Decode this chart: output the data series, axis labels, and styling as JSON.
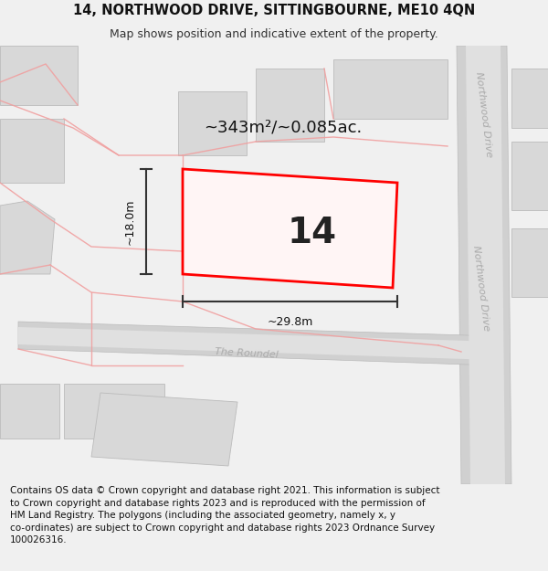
{
  "title_line1": "14, NORTHWOOD DRIVE, SITTINGBOURNE, ME10 4QN",
  "title_line2": "Map shows position and indicative extent of the property.",
  "footer_text": "Contains OS data © Crown copyright and database right 2021. This information is subject\nto Crown copyright and database rights 2023 and is reproduced with the permission of\nHM Land Registry. The polygons (including the associated geometry, namely x, y\nco-ordinates) are subject to Crown copyright and database rights 2023 Ordnance Survey\n100026316.",
  "area_label": "~343m²/~0.085ac.",
  "number_label": "14",
  "width_label": "~29.8m",
  "height_label": "~18.0m",
  "fig_bg": "#f0f0f0",
  "map_bg": "#f8f8f8",
  "building_fill": "#d8d8d8",
  "building_edge": "#bbbbbb",
  "road_fill": "#d0d0d0",
  "street_line_color": "#f0a0a0",
  "highlight_color": "#ff0000",
  "highlight_fill": "#fff5f5",
  "dim_color": "#333333",
  "road_label_color": "#aaaaaa",
  "title_fontsize": 10.5,
  "subtitle_fontsize": 9,
  "footer_fontsize": 7.5,
  "area_fontsize": 13,
  "number_fontsize": 28,
  "dim_fontsize": 9,
  "road_fontsize": 8
}
